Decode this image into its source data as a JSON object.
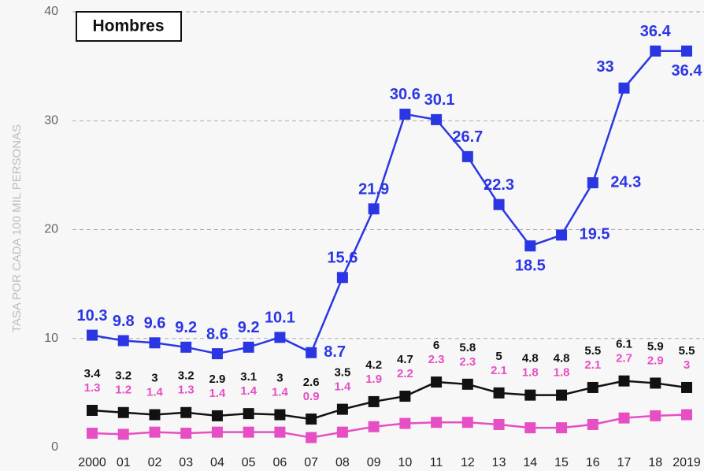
{
  "chart_data": {
    "type": "line",
    "title": "Hombres",
    "y_label": "TASA POR CADA 100 MIL PERSONAS",
    "categories": [
      "2000",
      "01",
      "02",
      "03",
      "04",
      "05",
      "06",
      "07",
      "08",
      "09",
      "10",
      "11",
      "12",
      "13",
      "14",
      "15",
      "16",
      "17",
      "18",
      "2019"
    ],
    "series": [
      {
        "color": "#2b36e3",
        "values": [
          10.3,
          9.8,
          9.6,
          9.2,
          8.6,
          9.2,
          10.1,
          8.7,
          15.6,
          21.9,
          30.6,
          30.1,
          26.7,
          22.3,
          18.5,
          19.5,
          24.3,
          33,
          36.4,
          36.4
        ]
      },
      {
        "color": "#111111",
        "values": [
          3.4,
          3.2,
          3,
          3.2,
          2.9,
          3.1,
          3,
          2.6,
          3.5,
          4.2,
          4.7,
          6,
          5.8,
          5,
          4.8,
          4.8,
          5.5,
          6.1,
          5.9,
          5.5
        ]
      },
      {
        "color": "#e64fc4",
        "values": [
          1.3,
          1.2,
          1.4,
          1.3,
          1.4,
          1.4,
          1.4,
          0.9,
          1.4,
          1.9,
          2.2,
          2.3,
          2.3,
          2.1,
          1.8,
          1.8,
          2.1,
          2.7,
          2.9,
          3
        ]
      }
    ],
    "ylim": [
      0,
      40
    ],
    "yticks": [
      0,
      10,
      20,
      30,
      40
    ],
    "grid": true
  }
}
